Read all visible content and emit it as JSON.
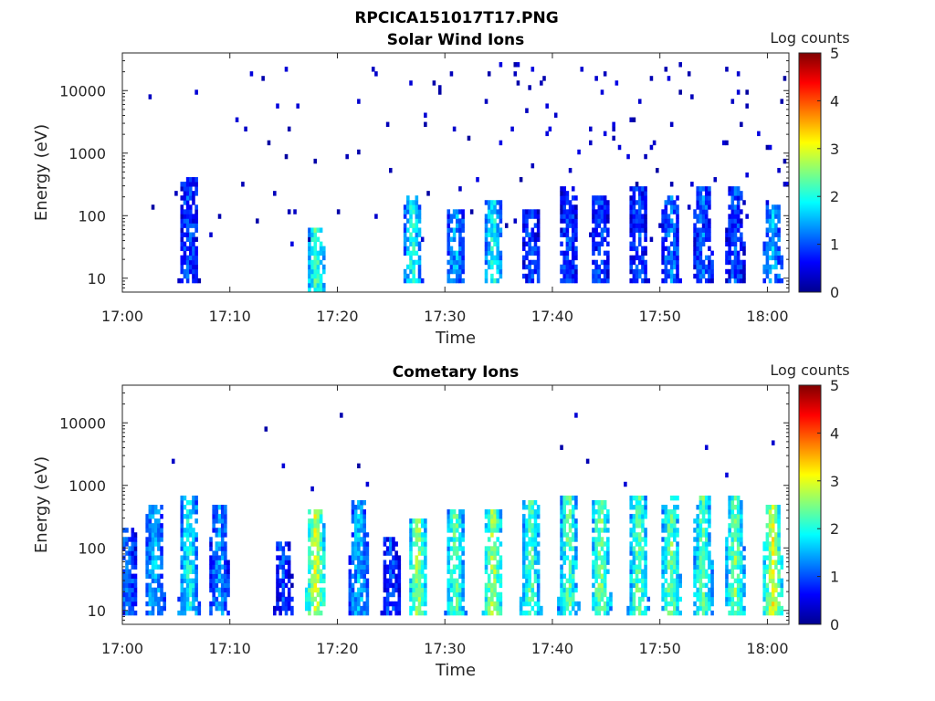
{
  "figure_title": "RPCICA151017T17.PNG",
  "chart_data": [
    {
      "type": "heatmap",
      "title": "Solar Wind Ions",
      "xlabel": "Time",
      "ylabel": "Energy (eV)",
      "x_ticks": [
        "17:00",
        "17:10",
        "17:20",
        "17:30",
        "17:40",
        "17:50",
        "18:00"
      ],
      "x_range_minutes": [
        0,
        62
      ],
      "y_scale": "log",
      "y_ticks": [
        10,
        100,
        1000,
        10000
      ],
      "y_tick_labels": [
        "10",
        "100",
        "1000",
        "10000"
      ],
      "y_range": [
        6,
        40000
      ],
      "colorbar": {
        "label": "Log counts",
        "range": [
          0,
          5
        ],
        "ticks": [
          "0",
          "1",
          "2",
          "3",
          "4",
          "5"
        ],
        "colormap": "jet"
      },
      "bursts": [
        {
          "t": 6.2,
          "emin": 8,
          "emax": 400,
          "level": 1.0
        },
        {
          "t": 18.0,
          "emin": 6,
          "emax": 60,
          "level": 2.3
        },
        {
          "t": 27.0,
          "emin": 8,
          "emax": 200,
          "level": 2.0
        },
        {
          "t": 31.0,
          "emin": 8,
          "emax": 120,
          "level": 1.5
        },
        {
          "t": 34.5,
          "emin": 8,
          "emax": 180,
          "level": 2.0
        },
        {
          "t": 38.0,
          "emin": 8,
          "emax": 120,
          "level": 1.0
        },
        {
          "t": 41.5,
          "emin": 8,
          "emax": 300,
          "level": 1.0
        },
        {
          "t": 44.5,
          "emin": 8,
          "emax": 200,
          "level": 1.0
        },
        {
          "t": 48.0,
          "emin": 8,
          "emax": 300,
          "level": 1.0
        },
        {
          "t": 51.0,
          "emin": 8,
          "emax": 200,
          "level": 1.3
        },
        {
          "t": 54.0,
          "emin": 8,
          "emax": 300,
          "level": 1.2
        },
        {
          "t": 57.0,
          "emin": 8,
          "emax": 300,
          "level": 1.0
        },
        {
          "t": 60.5,
          "emin": 8,
          "emax": 150,
          "level": 1.6
        }
      ],
      "scatter": {
        "emin": 30,
        "emax": 30000,
        "density_start": 6,
        "density_end": 30
      }
    },
    {
      "type": "heatmap",
      "title": "Cometary Ions",
      "xlabel": "Time",
      "ylabel": "Energy (eV)",
      "x_ticks": [
        "17:00",
        "17:10",
        "17:20",
        "17:30",
        "17:40",
        "17:50",
        "18:00"
      ],
      "x_range_minutes": [
        0,
        62
      ],
      "y_scale": "log",
      "y_ticks": [
        10,
        100,
        1000,
        10000
      ],
      "y_tick_labels": [
        "10",
        "100",
        "1000",
        "10000"
      ],
      "y_range": [
        6,
        40000
      ],
      "colorbar": {
        "label": "Log counts",
        "range": [
          0,
          5
        ],
        "ticks": [
          "0",
          "1",
          "2",
          "3",
          "4",
          "5"
        ],
        "colormap": "jet"
      },
      "bursts": [
        {
          "t": 0.5,
          "emin": 8,
          "emax": 200,
          "level": 1.2
        },
        {
          "t": 3.0,
          "emin": 8,
          "emax": 500,
          "level": 1.6
        },
        {
          "t": 6.2,
          "emin": 8,
          "emax": 700,
          "level": 2.0
        },
        {
          "t": 9.0,
          "emin": 8,
          "emax": 500,
          "level": 1.4
        },
        {
          "t": 15.0,
          "emin": 8,
          "emax": 120,
          "level": 1.0
        },
        {
          "t": 18.0,
          "emin": 8,
          "emax": 400,
          "level": 3.0
        },
        {
          "t": 22.0,
          "emin": 8,
          "emax": 600,
          "level": 1.6
        },
        {
          "t": 25.0,
          "emin": 8,
          "emax": 150,
          "level": 1.0
        },
        {
          "t": 27.5,
          "emin": 8,
          "emax": 300,
          "level": 2.7
        },
        {
          "t": 31.0,
          "emin": 8,
          "emax": 400,
          "level": 2.4
        },
        {
          "t": 34.5,
          "emin": 8,
          "emax": 400,
          "level": 2.8
        },
        {
          "t": 38.0,
          "emin": 8,
          "emax": 600,
          "level": 2.3
        },
        {
          "t": 41.5,
          "emin": 8,
          "emax": 700,
          "level": 2.4
        },
        {
          "t": 44.5,
          "emin": 8,
          "emax": 600,
          "level": 2.6
        },
        {
          "t": 48.0,
          "emin": 8,
          "emax": 700,
          "level": 2.4
        },
        {
          "t": 51.0,
          "emin": 8,
          "emax": 700,
          "level": 2.5
        },
        {
          "t": 54.0,
          "emin": 8,
          "emax": 700,
          "level": 2.4
        },
        {
          "t": 57.0,
          "emin": 8,
          "emax": 700,
          "level": 2.5
        },
        {
          "t": 60.5,
          "emin": 8,
          "emax": 500,
          "level": 3.0
        }
      ],
      "scatter": {
        "emin": 800,
        "emax": 15000,
        "density_start": 2,
        "density_end": 6
      }
    }
  ]
}
